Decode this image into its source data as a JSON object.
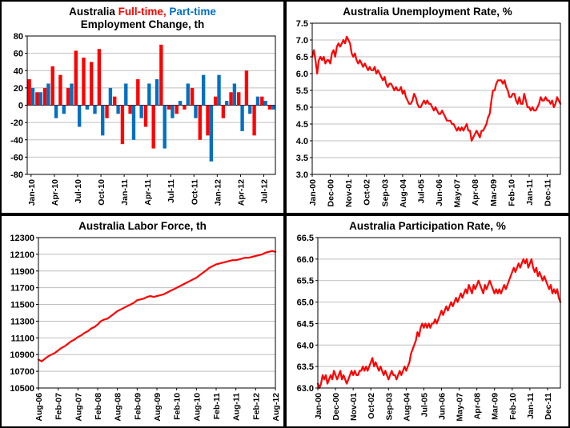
{
  "page": {
    "background": "#ffffff"
  },
  "colors": {
    "grid": "#bfbfbf",
    "axis": "#000000",
    "line": "#ff0000",
    "full_time": "#ff0000",
    "part_time": "#0070c0"
  },
  "chart_data": [
    {
      "id": "employment-change",
      "type": "bar",
      "title_parts": [
        {
          "text": "Australia ",
          "color": "#000000"
        },
        {
          "text": "Full-time,",
          "color": "#ff0000"
        },
        {
          "text": " Part-time",
          "color": "#0070c0"
        }
      ],
      "title_line2": "Employment Change, th",
      "ylabel": "",
      "xlabel": "",
      "ylim": [
        -80,
        80
      ],
      "ytick_step": 20,
      "ytick_decimals": 0,
      "xtick_every": 3,
      "categories": [
        "Jan-10",
        "Feb-10",
        "Mar-10",
        "Apr-10",
        "May-10",
        "Jun-10",
        "Jul-10",
        "Aug-10",
        "Sep-10",
        "Oct-10",
        "Nov-10",
        "Dec-10",
        "Jan-11",
        "Feb-11",
        "Mar-11",
        "Apr-11",
        "May-11",
        "Jun-11",
        "Jul-11",
        "Aug-11",
        "Sep-11",
        "Oct-11",
        "Nov-11",
        "Dec-11",
        "Jan-12",
        "Feb-12",
        "Mar-12",
        "Apr-12",
        "May-12",
        "Jun-12",
        "Jul-12",
        "Aug-12"
      ],
      "series": [
        {
          "name": "Full-time",
          "color": "#ff0000",
          "values": [
            30,
            15,
            20,
            45,
            35,
            20,
            63,
            55,
            50,
            65,
            -15,
            10,
            -45,
            -10,
            30,
            -25,
            -50,
            70,
            -5,
            -10,
            -5,
            20,
            -40,
            -35,
            10,
            -15,
            15,
            15,
            40,
            -35,
            10,
            -5
          ]
        },
        {
          "name": "Part-time",
          "color": "#0070c0",
          "values": [
            20,
            15,
            25,
            -15,
            -10,
            25,
            -25,
            -5,
            -10,
            -35,
            20,
            -10,
            25,
            -40,
            -15,
            25,
            30,
            -50,
            -15,
            5,
            25,
            -15,
            35,
            -65,
            35,
            5,
            25,
            -30,
            -10,
            10,
            5,
            -5
          ]
        }
      ]
    },
    {
      "id": "unemployment-rate",
      "type": "line",
      "title": "Australia Unemployment Rate, %",
      "line_color": "#ff0000",
      "ylim": [
        3.0,
        7.5
      ],
      "ytick_step": 0.5,
      "ytick_decimals": 1,
      "x_start": "Jan-00",
      "x_interval": "monthly",
      "xtick_every": 11,
      "x_ticks": [
        "Jan-00",
        "Dec-00",
        "Nov-01",
        "Oct-02",
        "Sep-03",
        "Aug-04",
        "Jul-05",
        "Jun-06",
        "May-07",
        "Apr-08",
        "Mar-09",
        "Feb-10",
        "Jan-11",
        "Dec-11"
      ],
      "values": [
        6.5,
        6.7,
        6.4,
        6.0,
        6.4,
        6.5,
        6.4,
        6.5,
        6.3,
        6.4,
        6.4,
        6.3,
        6.6,
        6.7,
        6.5,
        6.8,
        6.9,
        6.8,
        6.9,
        7.0,
        6.9,
        7.1,
        7.0,
        6.9,
        6.6,
        6.5,
        6.6,
        6.4,
        6.3,
        6.4,
        6.3,
        6.2,
        6.3,
        6.2,
        6.1,
        6.2,
        6.1,
        6.1,
        6.2,
        6.0,
        6.1,
        6.0,
        5.9,
        5.8,
        5.9,
        5.7,
        5.6,
        5.7,
        5.7,
        5.6,
        5.5,
        5.6,
        5.5,
        5.5,
        5.6,
        5.4,
        5.5,
        5.3,
        5.2,
        5.1,
        5.1,
        5.2,
        5.4,
        5.3,
        5.1,
        5.0,
        5.0,
        5.1,
        5.2,
        5.1,
        5.2,
        5.1,
        5.1,
        5.0,
        4.9,
        5.0,
        4.9,
        4.8,
        4.8,
        4.9,
        4.8,
        4.7,
        4.6,
        4.6,
        4.6,
        4.5,
        4.5,
        4.4,
        4.3,
        4.4,
        4.3,
        4.4,
        4.3,
        4.4,
        4.5,
        4.3,
        4.3,
        4.0,
        4.1,
        4.2,
        4.3,
        4.2,
        4.1,
        4.3,
        4.3,
        4.4,
        4.5,
        4.7,
        4.8,
        5.2,
        5.5,
        5.5,
        5.7,
        5.8,
        5.8,
        5.8,
        5.7,
        5.8,
        5.6,
        5.5,
        5.3,
        5.3,
        5.4,
        5.4,
        5.2,
        5.1,
        5.3,
        5.1,
        5.1,
        5.4,
        5.2,
        5.0,
        5.0,
        4.9,
        5.0,
        4.9,
        4.9,
        5.0,
        5.1,
        5.3,
        5.2,
        5.2,
        5.3,
        5.2,
        5.2,
        5.1,
        5.2,
        5.0,
        5.1,
        5.3,
        5.2,
        5.1
      ]
    },
    {
      "id": "labor-force",
      "type": "line",
      "title": "Australia Labor Force, th",
      "line_color": "#ff0000",
      "ylim": [
        10500,
        12300
      ],
      "ytick_step": 200,
      "ytick_decimals": 0,
      "x_start": "Aug-06",
      "x_interval": "monthly",
      "xtick_every": 6,
      "x_ticks": [
        "Aug-06",
        "Feb-07",
        "Aug-07",
        "Feb-08",
        "Aug-08",
        "Feb-09",
        "Aug-09",
        "Feb-10",
        "Aug-10",
        "Feb-11",
        "Aug-11",
        "Feb-12",
        "Aug-12"
      ],
      "values": [
        10840,
        10820,
        10850,
        10880,
        10900,
        10920,
        10950,
        10980,
        11000,
        11030,
        11060,
        11080,
        11110,
        11130,
        11160,
        11180,
        11210,
        11230,
        11260,
        11300,
        11320,
        11330,
        11360,
        11390,
        11420,
        11440,
        11460,
        11480,
        11500,
        11520,
        11550,
        11560,
        11570,
        11590,
        11600,
        11590,
        11600,
        11610,
        11620,
        11640,
        11660,
        11680,
        11700,
        11720,
        11740,
        11760,
        11780,
        11800,
        11820,
        11850,
        11880,
        11910,
        11940,
        11960,
        11980,
        11990,
        12000,
        12010,
        12020,
        12030,
        12030,
        12040,
        12050,
        12060,
        12060,
        12070,
        12080,
        12090,
        12100,
        12120,
        12130,
        12140,
        12130
      ]
    },
    {
      "id": "participation-rate",
      "type": "line",
      "title": "Australia Participation Rate, %",
      "line_color": "#ff0000",
      "ylim": [
        63.0,
        66.5
      ],
      "ytick_step": 0.5,
      "ytick_decimals": 1,
      "x_start": "Jan-00",
      "x_interval": "monthly",
      "xtick_every": 11,
      "x_ticks": [
        "Jan-00",
        "Dec-00",
        "Nov-01",
        "Oct-02",
        "Sep-03",
        "Aug-04",
        "Jul-05",
        "Jun-06",
        "May-07",
        "Apr-08",
        "Mar-09",
        "Feb-10",
        "Jan-11",
        "Dec-11"
      ],
      "values": [
        63.1,
        63.0,
        63.1,
        63.3,
        63.2,
        63.3,
        63.1,
        63.2,
        63.3,
        63.2,
        63.4,
        63.3,
        63.2,
        63.3,
        63.4,
        63.2,
        63.3,
        63.2,
        63.1,
        63.2,
        63.3,
        63.4,
        63.3,
        63.4,
        63.3,
        63.3,
        63.4,
        63.4,
        63.5,
        63.4,
        63.5,
        63.4,
        63.5,
        63.6,
        63.7,
        63.5,
        63.6,
        63.5,
        63.4,
        63.5,
        63.4,
        63.3,
        63.4,
        63.3,
        63.2,
        63.3,
        63.4,
        63.3,
        63.3,
        63.2,
        63.3,
        63.4,
        63.3,
        63.4,
        63.5,
        63.4,
        63.5,
        63.6,
        63.8,
        63.9,
        64.0,
        64.1,
        64.3,
        64.2,
        64.4,
        64.5,
        64.4,
        64.5,
        64.4,
        64.5,
        64.4,
        64.5,
        64.5,
        64.6,
        64.5,
        64.6,
        64.7,
        64.8,
        64.7,
        64.8,
        64.9,
        64.8,
        64.9,
        65.0,
        64.9,
        65.0,
        65.1,
        65.0,
        65.1,
        65.2,
        65.1,
        65.2,
        65.3,
        65.2,
        65.4,
        65.3,
        65.2,
        65.4,
        65.3,
        65.4,
        65.5,
        65.4,
        65.3,
        65.2,
        65.4,
        65.3,
        65.4,
        65.5,
        65.4,
        65.3,
        65.2,
        65.3,
        65.2,
        65.3,
        65.2,
        65.3,
        65.4,
        65.3,
        65.4,
        65.5,
        65.6,
        65.7,
        65.8,
        65.7,
        65.8,
        65.9,
        65.8,
        65.9,
        66.0,
        65.9,
        66.0,
        65.8,
        65.9,
        66.0,
        65.8,
        65.7,
        65.8,
        65.6,
        65.7,
        65.6,
        65.5,
        65.6,
        65.5,
        65.4,
        65.3,
        65.4,
        65.2,
        65.3,
        65.2,
        65.3,
        65.1,
        65.0
      ]
    }
  ]
}
